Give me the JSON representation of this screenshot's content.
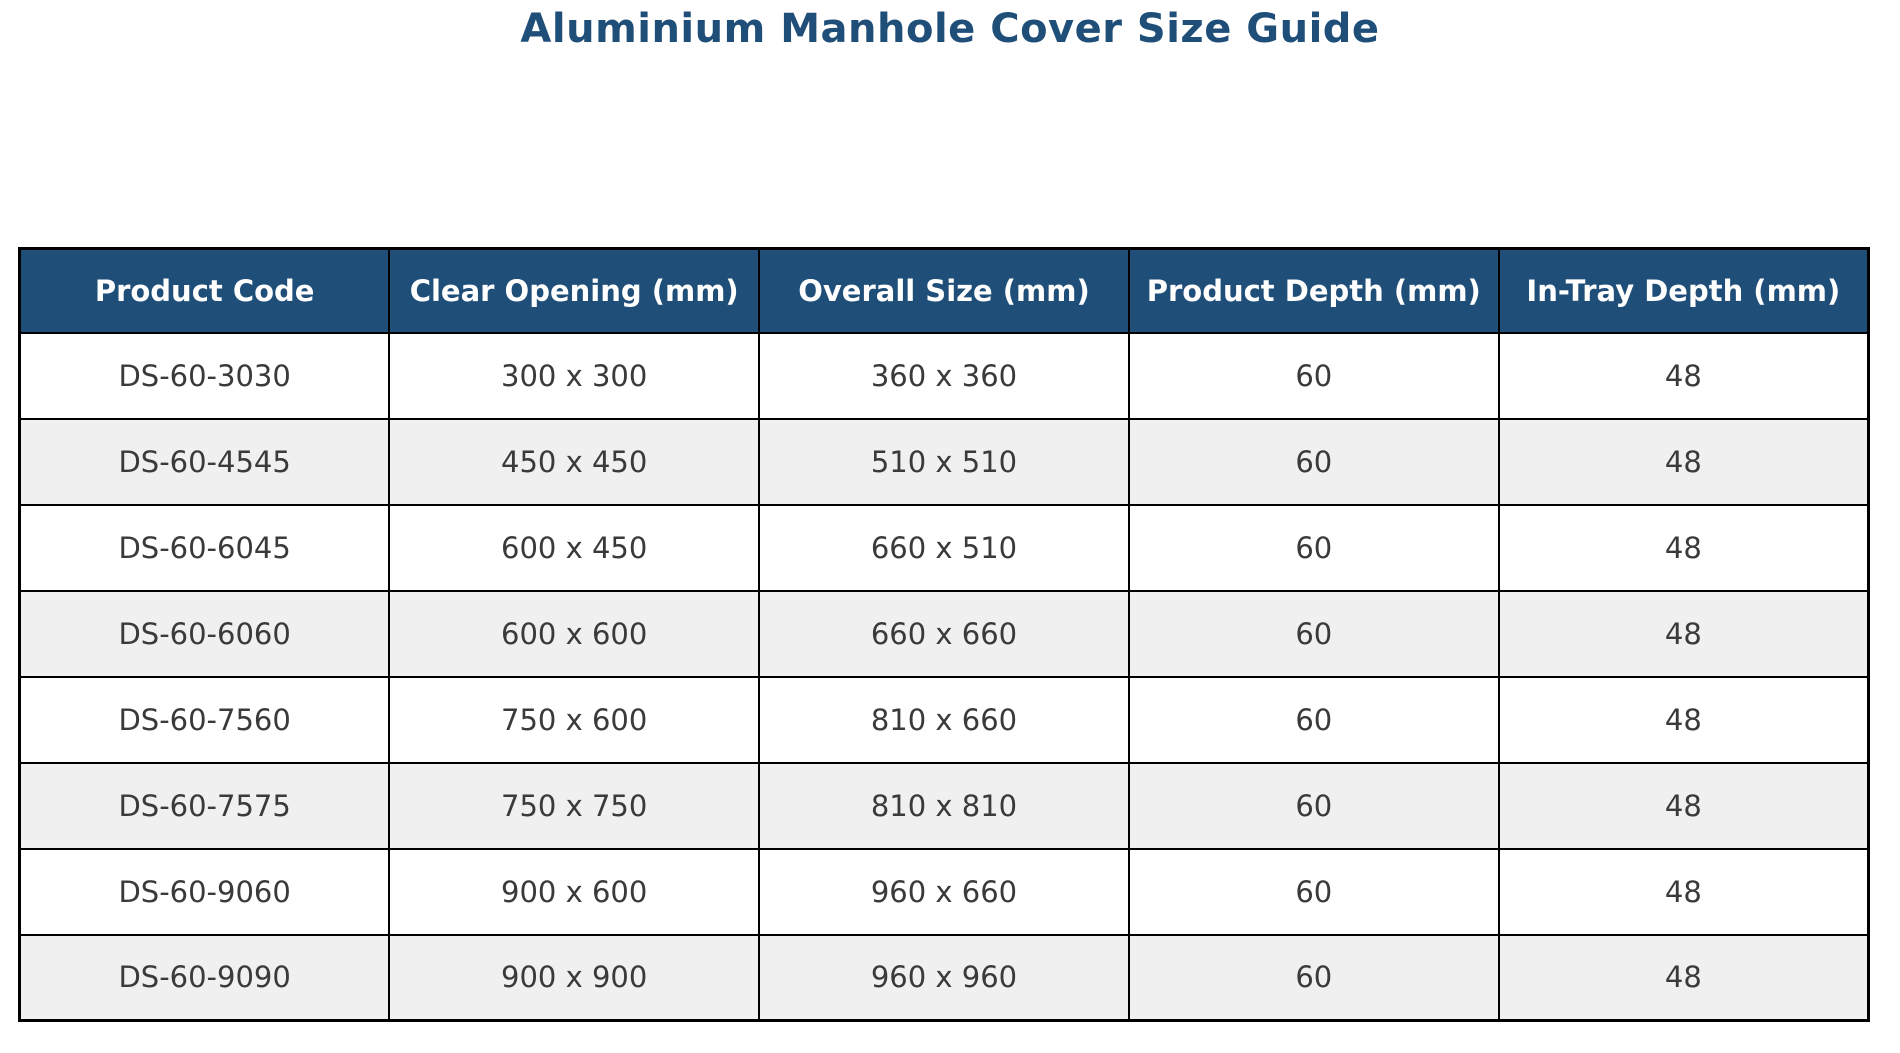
{
  "page": {
    "title": "Aluminium Manhole Cover Size Guide"
  },
  "colors": {
    "title": "#1F4E79",
    "header_bg": "#1F4E79",
    "header_text": "#FFFFFF",
    "row_bg": "#FFFFFF",
    "row_alt_bg": "#F0F0F0",
    "border": "#000000",
    "cell_text": "#3A3A3A"
  },
  "chart_data": {
    "type": "table",
    "title": "Aluminium Manhole Cover Size Guide",
    "columns": [
      "Product Code",
      "Clear Opening (mm)",
      "Overall Size (mm)",
      "Product Depth (mm)",
      "In-Tray Depth (mm)"
    ],
    "rows": [
      [
        "DS-60-3030",
        "300 x 300",
        "360 x 360",
        "60",
        "48"
      ],
      [
        "DS-60-4545",
        "450 x 450",
        "510 x 510",
        "60",
        "48"
      ],
      [
        "DS-60-6045",
        "600 x 450",
        "660 x 510",
        "60",
        "48"
      ],
      [
        "DS-60-6060",
        "600 x 600",
        "660 x 660",
        "60",
        "48"
      ],
      [
        "DS-60-7560",
        "750 x 600",
        "810 x 660",
        "60",
        "48"
      ],
      [
        "DS-60-7575",
        "750 x 750",
        "810 x 810",
        "60",
        "48"
      ],
      [
        "DS-60-9060",
        "900 x 600",
        "960 x 660",
        "60",
        "48"
      ],
      [
        "DS-60-9090",
        "900 x 900",
        "960 x 960",
        "60",
        "48"
      ]
    ],
    "layout": {
      "striped_rows": true,
      "grid": true,
      "header_style": "dark-blue-bold-white"
    }
  }
}
